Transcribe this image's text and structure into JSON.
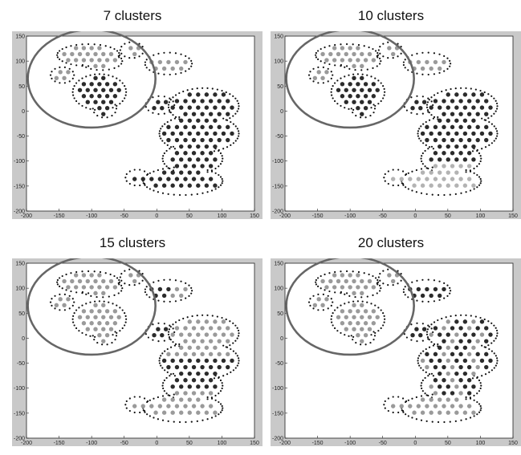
{
  "chart_data": [
    {
      "type": "scatter",
      "title": "7 clusters",
      "xlim": [
        -200,
        150
      ],
      "ylim": [
        -200,
        150
      ],
      "xticks": [
        "-200",
        "-150",
        "-100",
        "-50",
        "0",
        "50",
        "100",
        "150"
      ],
      "yticks": [
        "150",
        "100",
        "50",
        "0",
        "-50",
        "-100",
        "-150",
        "-200"
      ],
      "highlight_circle": {
        "cx": -100,
        "cy": 65,
        "r": 98
      },
      "colors": {
        "dark": "#2b2b2b",
        "gray": "#9a9a9a",
        "light": "#b3b3b3",
        "outline": "#111111",
        "circle": "#666666"
      }
    },
    {
      "type": "scatter",
      "title": "10 clusters",
      "xlim": [
        -200,
        150
      ],
      "ylim": [
        -200,
        150
      ],
      "xticks": [
        "-200",
        "-150",
        "-100",
        "-50",
        "0",
        "50",
        "100",
        "150"
      ],
      "yticks": [
        "150",
        "100",
        "50",
        "0",
        "-50",
        "-100",
        "-150",
        "-200"
      ],
      "highlight_circle": {
        "cx": -100,
        "cy": 65,
        "r": 98
      },
      "colors": {
        "dark": "#2b2b2b",
        "gray": "#9a9a9a",
        "light": "#b3b3b3",
        "outline": "#111111",
        "circle": "#666666"
      }
    },
    {
      "type": "scatter",
      "title": "15 clusters",
      "xlim": [
        -200,
        150
      ],
      "ylim": [
        -200,
        150
      ],
      "xticks": [
        "-200",
        "-150",
        "-100",
        "-50",
        "0",
        "50",
        "100",
        "150"
      ],
      "yticks": [
        "150",
        "100",
        "50",
        "0",
        "-50",
        "-100",
        "-150",
        "-200"
      ],
      "highlight_circle": {
        "cx": -100,
        "cy": 65,
        "r": 98
      },
      "colors": {
        "dark": "#2b2b2b",
        "gray": "#9a9a9a",
        "light": "#b3b3b3",
        "outline": "#111111",
        "circle": "#666666"
      }
    },
    {
      "type": "scatter",
      "title": "20 clusters",
      "xlim": [
        -200,
        150
      ],
      "ylim": [
        -200,
        150
      ],
      "xticks": [
        "-200",
        "-150",
        "-100",
        "-50",
        "0",
        "50",
        "100",
        "150"
      ],
      "yticks": [
        "150",
        "100",
        "50",
        "0",
        "-50",
        "-100",
        "-150",
        "-200"
      ],
      "highlight_circle": {
        "cx": -100,
        "cy": 65,
        "r": 98
      },
      "colors": {
        "dark": "#2b2b2b",
        "gray": "#9a9a9a",
        "light": "#b3b3b3",
        "outline": "#111111",
        "circle": "#666666"
      }
    }
  ]
}
